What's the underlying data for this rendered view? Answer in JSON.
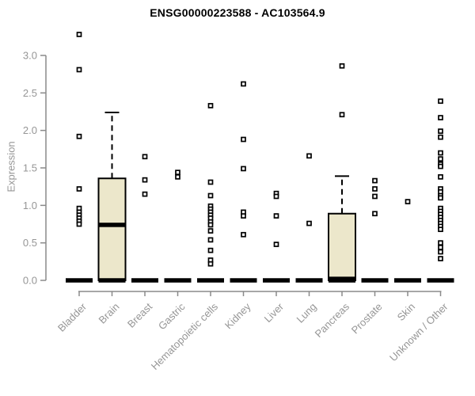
{
  "colors": {
    "box_fill": "#ece7cb",
    "box_border": "#000000",
    "median": "#000000",
    "marker_stroke": "#000000",
    "marker_fill": "#ffffff",
    "axis": "#8a8a8a",
    "tick_label": "#969696",
    "title": "#000000"
  },
  "chart_data": {
    "type": "boxplot",
    "title": "ENSG00000223588 - AC103564.9",
    "xlabel": "",
    "ylabel": "Expression",
    "ylim": [
      0.0,
      3.3
    ],
    "yticks": [
      0.0,
      0.5,
      1.0,
      1.5,
      2.0,
      2.5,
      3.0
    ],
    "grid": "off",
    "legend": "none",
    "categories": [
      "Bladder",
      "Brain",
      "Breast",
      "Gastric",
      "Hematopoietic cells",
      "Kidney",
      "Liver",
      "Lung",
      "Pancreas",
      "Prostate",
      "Skin",
      "Unknown / Other"
    ],
    "boxes": [
      {
        "category": "Bladder",
        "whisker_low": 0,
        "q1": 0,
        "median": 0,
        "q3": 0,
        "whisker_high": 0,
        "points": [
          3.28,
          2.81,
          1.92,
          1.22,
          0.96,
          0.91,
          0.87,
          0.83,
          0.79,
          0.75
        ]
      },
      {
        "category": "Brain",
        "whisker_low": 0,
        "q1": 0,
        "median": 0.74,
        "q3": 1.36,
        "whisker_high": 2.24,
        "points": []
      },
      {
        "category": "Breast",
        "whisker_low": 0,
        "q1": 0,
        "median": 0,
        "q3": 0,
        "whisker_high": 0,
        "points": [
          1.65,
          1.34,
          1.15
        ]
      },
      {
        "category": "Gastric",
        "whisker_low": 0,
        "q1": 0,
        "median": 0,
        "q3": 0,
        "whisker_high": 0,
        "points": [
          1.44,
          1.38
        ]
      },
      {
        "category": "Hematopoietic cells",
        "whisker_low": 0,
        "q1": 0,
        "median": 0,
        "q3": 0,
        "whisker_high": 0,
        "points": [
          2.33,
          1.31,
          1.13,
          0.99,
          0.95,
          0.91,
          0.87,
          0.83,
          0.78,
          0.74,
          0.66,
          0.54,
          0.4,
          0.27,
          0.22
        ]
      },
      {
        "category": "Kidney",
        "whisker_low": 0,
        "q1": 0,
        "median": 0,
        "q3": 0,
        "whisker_high": 0,
        "points": [
          2.62,
          1.88,
          1.49,
          0.91,
          0.86,
          0.61
        ]
      },
      {
        "category": "Liver",
        "whisker_low": 0,
        "q1": 0,
        "median": 0,
        "q3": 0,
        "whisker_high": 0,
        "points": [
          1.16,
          1.12,
          0.86,
          0.48
        ]
      },
      {
        "category": "Lung",
        "whisker_low": 0,
        "q1": 0,
        "median": 0,
        "q3": 0,
        "whisker_high": 0,
        "points": [
          1.66,
          0.76
        ]
      },
      {
        "category": "Pancreas",
        "whisker_low": 0,
        "q1": 0,
        "median": 0.02,
        "q3": 0.89,
        "whisker_high": 1.39,
        "points": [
          2.86,
          2.21
        ]
      },
      {
        "category": "Prostate",
        "whisker_low": 0,
        "q1": 0,
        "median": 0,
        "q3": 0,
        "whisker_high": 0,
        "points": [
          1.33,
          1.22,
          1.12,
          0.89
        ]
      },
      {
        "category": "Skin",
        "whisker_low": 0,
        "q1": 0,
        "median": 0,
        "q3": 0,
        "whisker_high": 0,
        "points": [
          1.05
        ]
      },
      {
        "category": "Unknown / Other",
        "whisker_low": 0,
        "q1": 0,
        "median": 0,
        "q3": 0,
        "whisker_high": 0,
        "points": [
          2.39,
          2.17,
          1.99,
          1.91,
          1.7,
          1.62,
          1.55,
          1.52,
          1.38,
          1.22,
          1.18,
          1.13,
          1.1,
          0.96,
          0.92,
          0.88,
          0.84,
          0.8,
          0.76,
          0.72,
          0.68,
          0.5,
          0.44,
          0.38,
          0.29
        ]
      }
    ]
  }
}
